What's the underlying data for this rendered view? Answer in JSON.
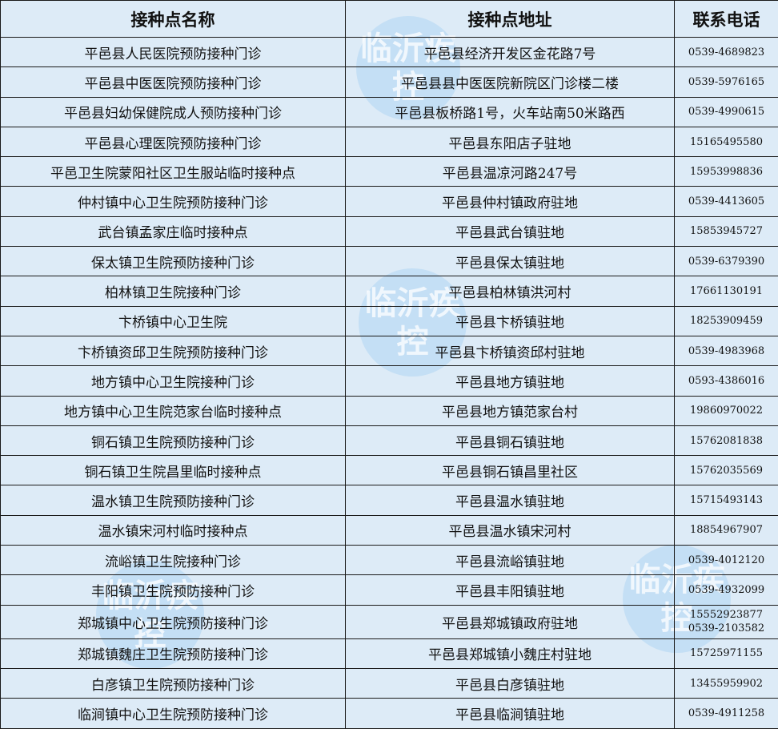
{
  "headers": [
    "接种点名称",
    "接种点地址",
    "联系电话"
  ],
  "watermark": "临沂疾控",
  "rows": [
    {
      "name": "平邑县人民医院预防接种门诊",
      "address": "平邑县经济开发区金花路7号",
      "phone": "0539-4689823"
    },
    {
      "name": "平邑县中医医院预防接种门诊",
      "address": "平邑县县中医医院新院区门诊楼二楼",
      "phone": "0539-5976165"
    },
    {
      "name": "平邑县妇幼保健院成人预防接种门诊",
      "address": "平邑县板桥路1号，火车站南50米路西",
      "phone": "0539-4990615"
    },
    {
      "name": "平邑县心理医院预防接种门诊",
      "address": "平邑县东阳店子驻地",
      "phone": "15165495580"
    },
    {
      "name": "平邑卫生院蒙阳社区卫生服站临时接种点",
      "address": "平邑县温凉河路247号",
      "phone": "15953998836"
    },
    {
      "name": "仲村镇中心卫生院预防接种门诊",
      "address": "平邑县仲村镇政府驻地",
      "phone": "0539-4413605"
    },
    {
      "name": "武台镇孟家庄临时接种点",
      "address": "平邑县武台镇驻地",
      "phone": "15853945727"
    },
    {
      "name": "保太镇卫生院预防接种门诊",
      "address": "平邑县保太镇驻地",
      "phone": "0539-6379390"
    },
    {
      "name": "柏林镇卫生院接种门诊",
      "address": "平邑县柏林镇洪河村",
      "phone": "17661130191"
    },
    {
      "name": "卞桥镇中心卫生院",
      "address": "平邑县卞桥镇驻地",
      "phone": "18253909459"
    },
    {
      "name": "卞桥镇资邱卫生院预防接种门诊",
      "address": "平邑县卞桥镇资邱村驻地",
      "phone": "0539-4983968"
    },
    {
      "name": "地方镇中心卫生院接种门诊",
      "address": "平邑县地方镇驻地",
      "phone": "0593-4386016"
    },
    {
      "name": "地方镇中心卫生院范家台临时接种点",
      "address": "平邑县地方镇范家台村",
      "phone": "19860970022"
    },
    {
      "name": "铜石镇卫生院预防接种门诊",
      "address": "平邑县铜石镇驻地",
      "phone": "15762081838"
    },
    {
      "name": "铜石镇卫生院昌里临时接种点",
      "address": "平邑县铜石镇昌里社区",
      "phone": "15762035569"
    },
    {
      "name": "温水镇卫生院预防接种门诊",
      "address": "平邑县温水镇驻地",
      "phone": "15715493143"
    },
    {
      "name": "温水镇宋河村临时接种点",
      "address": "平邑县温水镇宋河村",
      "phone": "18854967907"
    },
    {
      "name": "流峪镇卫生院接种门诊",
      "address": "平邑县流峪镇驻地",
      "phone": "0539-4012120"
    },
    {
      "name": "丰阳镇卫生院预防接种门诊",
      "address": "平邑县丰阳镇驻地",
      "phone": "0539-4932099"
    },
    {
      "name": "郑城镇中心卫生院预防接种门诊",
      "address": "平邑县郑城镇政府驻地",
      "phone": "15552923877",
      "phone2": "0539-2103582"
    },
    {
      "name": "郑城镇魏庄卫生院预防接种门诊",
      "address": "平邑县郑城镇小魏庄村驻地",
      "phone": "15725971155"
    },
    {
      "name": "白彦镇卫生院预防接种门诊",
      "address": "平邑县白彦镇驻地",
      "phone": "13455959902"
    },
    {
      "name": "临涧镇中心卫生院预防接种门诊",
      "address": "平邑县临涧镇驻地",
      "phone": "0539-4911258"
    }
  ]
}
